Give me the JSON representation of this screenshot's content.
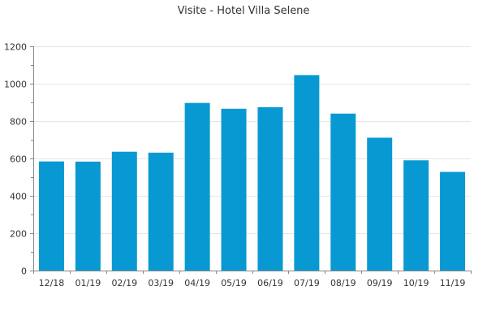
{
  "colors": {
    "bar": "#0999d2",
    "grid": "#e6e6e6",
    "axis": "#888888",
    "text": "#333333"
  },
  "chart_data": {
    "type": "bar",
    "title": "Visite - Hotel Villa Selene",
    "xlabel": "",
    "ylabel": "",
    "categories": [
      "12/18",
      "01/19",
      "02/19",
      "03/19",
      "04/19",
      "05/19",
      "06/19",
      "07/19",
      "08/19",
      "09/19",
      "10/19",
      "11/19"
    ],
    "values": [
      584,
      583,
      636,
      631,
      897,
      866,
      874,
      1046,
      840,
      711,
      590,
      528
    ],
    "ylim": [
      0,
      1200
    ],
    "yticks": [
      0,
      200,
      400,
      600,
      800,
      1000,
      1200
    ],
    "grid": true,
    "legend": "none"
  }
}
